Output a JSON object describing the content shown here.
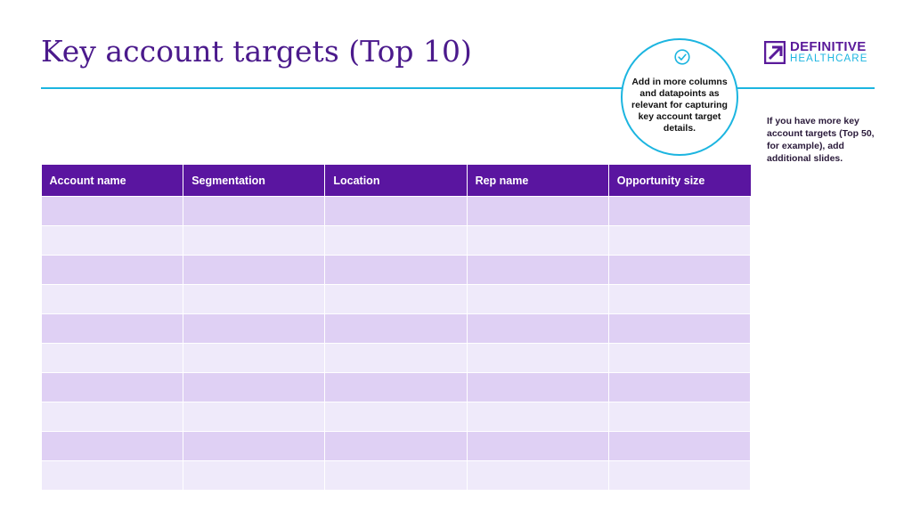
{
  "slide": {
    "title": "Key account targets (Top 10)"
  },
  "logo": {
    "line1": "DEFINITIVE",
    "line2": "HEALTHCARE",
    "mark_color": "#5a1a9a",
    "accent_color": "#1cb5e0"
  },
  "callout": {
    "icon": "check-circle-icon",
    "text": "Add in more columns and datapoints as relevant for capturing key account target details."
  },
  "side_note": {
    "text": "If you have more key account targets (Top 50, for example), add additional slides."
  },
  "table": {
    "headers": [
      "Account name",
      "Segmentation",
      "Location",
      "Rep name",
      "Opportunity size"
    ],
    "row_count": 10,
    "header_color": "#5a15a0",
    "row_colors": [
      "#dfd0f4",
      "#efeafa"
    ]
  }
}
